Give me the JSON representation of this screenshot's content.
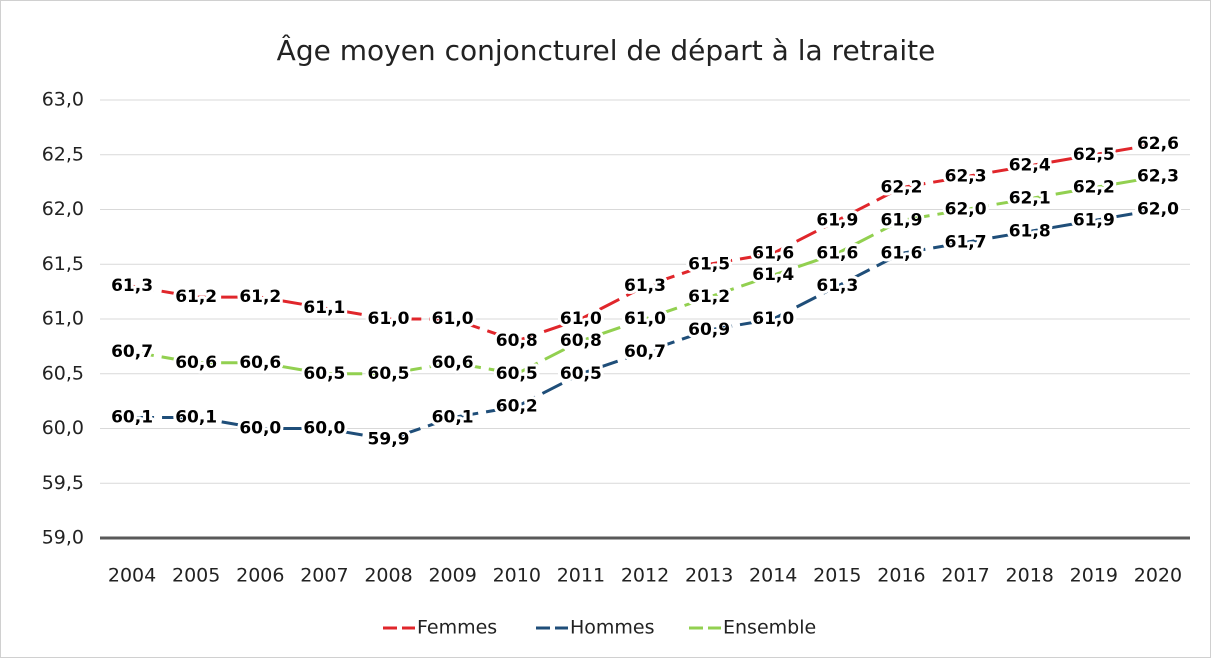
{
  "chart_data": {
    "type": "line",
    "title": "Âge moyen conjoncturel de départ à la retraite",
    "categories": [
      "2004",
      "2005",
      "2006",
      "2007",
      "2008",
      "2009",
      "2010",
      "2011",
      "2012",
      "2013",
      "2014",
      "2015",
      "2016",
      "2017",
      "2018",
      "2019",
      "2020"
    ],
    "series": [
      {
        "name": "Femmes",
        "color": "#e0262b",
        "values": [
          61.3,
          61.2,
          61.2,
          61.1,
          61.0,
          61.0,
          60.8,
          61.0,
          61.3,
          61.5,
          61.6,
          61.9,
          62.2,
          62.3,
          62.4,
          62.5,
          62.6
        ],
        "value_labels": [
          "61,3",
          "61,2",
          "61,2",
          "61,1",
          "61,0",
          "61,0",
          "60,8",
          "61,0",
          "61,3",
          "61,5",
          "61,6",
          "61,9",
          "62,2",
          "62,3",
          "62,4",
          "62,5",
          "62,6"
        ]
      },
      {
        "name": "Hommes",
        "color": "#1f4e79",
        "values": [
          60.1,
          60.1,
          60.0,
          60.0,
          59.9,
          60.1,
          60.2,
          60.5,
          60.7,
          60.9,
          61.0,
          61.3,
          61.6,
          61.7,
          61.8,
          61.9,
          62.0
        ],
        "value_labels": [
          "60,1",
          "60,1",
          "60,0",
          "60,0",
          "59,9",
          "60,1",
          "60,2",
          "60,5",
          "60,7",
          "60,9",
          "61,0",
          "61,3",
          "61,6",
          "61,7",
          "61,8",
          "61,9",
          "62,0"
        ]
      },
      {
        "name": "Ensemble",
        "color": "#92d050",
        "values": [
          60.7,
          60.6,
          60.6,
          60.5,
          60.5,
          60.6,
          60.5,
          60.8,
          61.0,
          61.2,
          61.4,
          61.6,
          61.9,
          62.0,
          62.1,
          62.2,
          62.3
        ],
        "value_labels": [
          "60,7",
          "60,6",
          "60,6",
          "60,5",
          "60,5",
          "60,6",
          "60,5",
          "60,8",
          "61,0",
          "61,2",
          "61,4",
          "61,6",
          "61,9",
          "62,0",
          "62,1",
          "62,2",
          "62,3"
        ]
      }
    ],
    "ylim": [
      59,
      63
    ],
    "yticks": [
      {
        "value": 59,
        "label": "59,0"
      },
      {
        "value": 59.5,
        "label": "59,5"
      },
      {
        "value": 60,
        "label": "60,0"
      },
      {
        "value": 60.5,
        "label": "60,5"
      },
      {
        "value": 61,
        "label": "61,0"
      },
      {
        "value": 61.5,
        "label": "61,5"
      },
      {
        "value": 62,
        "label": "62,0"
      },
      {
        "value": 62.5,
        "label": "62,5"
      },
      {
        "value": 63,
        "label": "63,0"
      }
    ],
    "grid": true,
    "legend": "bottom"
  }
}
